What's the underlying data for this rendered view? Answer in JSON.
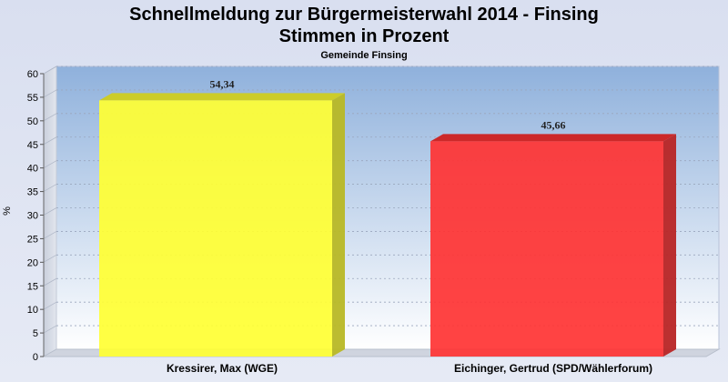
{
  "chart_data": {
    "type": "bar",
    "title": "Schnellmeldung zur Bürgermeisterwahl 2014 - Finsing",
    "title_line2": "Stimmen in Prozent",
    "subtitle": "Gemeinde Finsing",
    "ylabel": "%",
    "xlabel": "",
    "ylim": [
      0,
      60
    ],
    "yticks": [
      "0",
      "5",
      "10",
      "15",
      "20",
      "25",
      "30",
      "35",
      "40",
      "45",
      "50",
      "55",
      "60"
    ],
    "grid": true,
    "categories": [
      "Kressirer, Max (WGE)",
      "Eichinger, Gertrud (SPD/Wählerforum)"
    ],
    "values": [
      54.34,
      45.66
    ],
    "value_labels": [
      "54,34",
      "45,66"
    ],
    "colors": [
      "#ffff33",
      "#ff3333"
    ]
  }
}
